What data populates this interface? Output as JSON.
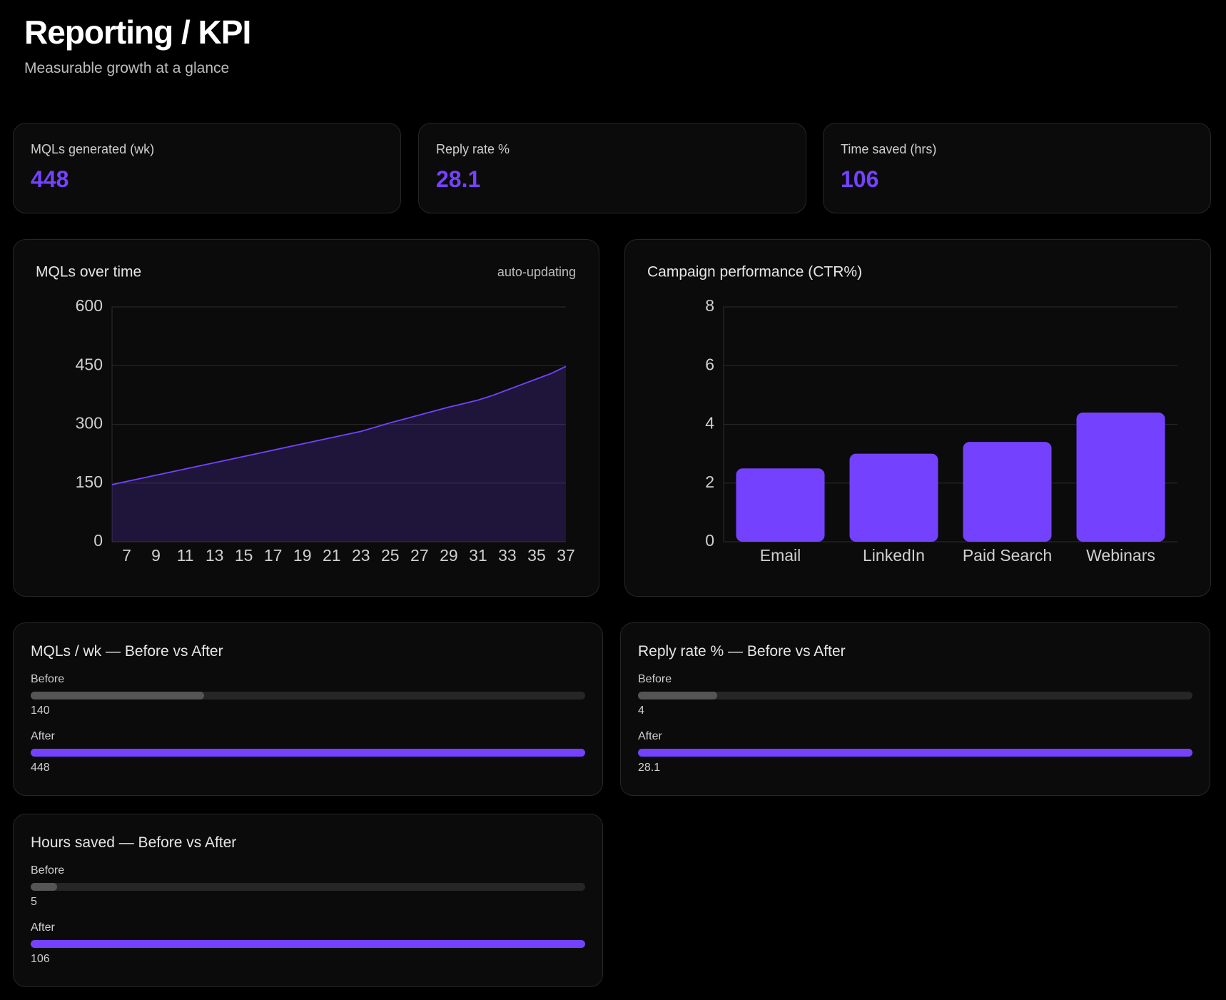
{
  "header": {
    "title": "Reporting / KPI",
    "subtitle": "Measurable growth at a glance"
  },
  "kpis": [
    {
      "label": "MQLs generated (wk)",
      "value": 448
    },
    {
      "label": "Reply rate %",
      "value": 28.1
    },
    {
      "label": "Time saved (hrs)",
      "value": 106
    }
  ],
  "chart_data": [
    {
      "type": "line",
      "title": "MQLs over time",
      "annotation": "auto-updating",
      "color": "#7442ff",
      "grid": true,
      "x": [
        6,
        7,
        8,
        9,
        10,
        11,
        12,
        13,
        14,
        15,
        16,
        17,
        18,
        19,
        20,
        21,
        22,
        23,
        24,
        25,
        26,
        27,
        28,
        29,
        30,
        31,
        32,
        33,
        34,
        35,
        36,
        37
      ],
      "values": [
        146,
        154,
        162,
        170,
        178,
        186,
        194,
        202,
        210,
        218,
        226,
        234,
        242,
        250,
        258,
        266,
        274,
        282,
        293,
        304,
        314,
        324,
        334,
        344,
        353,
        362,
        374,
        388,
        402,
        416,
        430,
        448
      ],
      "xlim": [
        6,
        37
      ],
      "xticks": [
        7,
        9,
        11,
        13,
        15,
        17,
        19,
        21,
        23,
        25,
        27,
        29,
        31,
        33,
        35,
        37
      ],
      "ylim": [
        0,
        600
      ],
      "yticks": [
        0,
        150,
        300,
        450,
        600
      ]
    },
    {
      "type": "bar",
      "title": "Campaign performance (CTR%)",
      "color": "#7442ff",
      "grid": true,
      "categories": [
        "Email",
        "LinkedIn",
        "Paid Search",
        "Webinars"
      ],
      "values": [
        2.5,
        3.0,
        3.4,
        4.4
      ],
      "ylim": [
        0,
        8
      ],
      "yticks": [
        0,
        2,
        4,
        6,
        8
      ]
    }
  ],
  "comparisons": [
    {
      "title": "MQLs / wk — Before vs After",
      "rows": [
        {
          "label": "Before",
          "value": 140
        },
        {
          "label": "After",
          "value": 448
        }
      ]
    },
    {
      "title": "Reply rate % — Before vs After",
      "rows": [
        {
          "label": "Before",
          "value": 4
        },
        {
          "label": "After",
          "value": 28.1
        }
      ]
    },
    {
      "title": "Hours saved — Before vs After",
      "rows": [
        {
          "label": "Before",
          "value": 5
        },
        {
          "label": "After",
          "value": 106
        }
      ]
    }
  ]
}
